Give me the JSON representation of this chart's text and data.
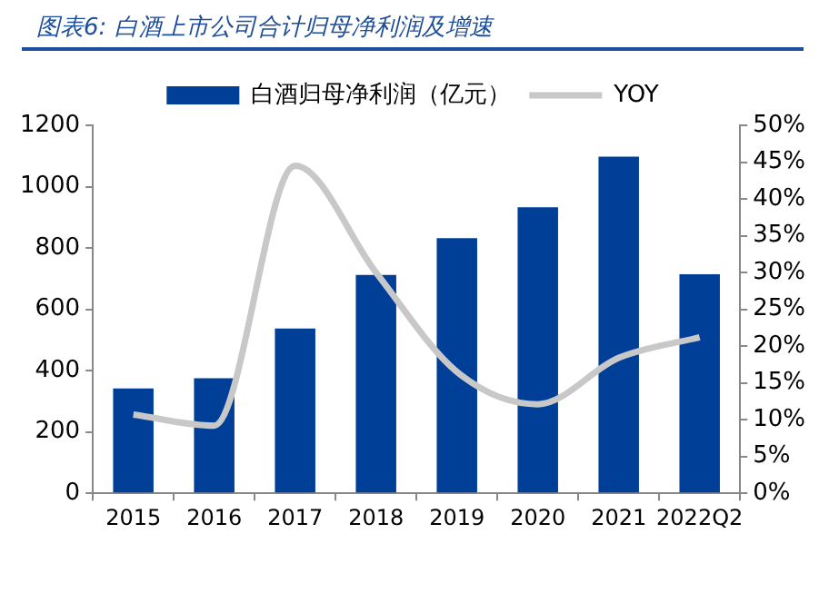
{
  "chart_data": {
    "type": "bar",
    "title": "图表6:  白酒上市公司合计归母净利润及增速",
    "categories": [
      "2015",
      "2016",
      "2017",
      "2018",
      "2019",
      "2020",
      "2021",
      "2022Q2"
    ],
    "series": [
      {
        "name": "白酒归母净利润（亿元）",
        "color": "#003f98",
        "values": [
          342,
          375,
          537,
          712,
          832,
          933,
          1098,
          714
        ]
      },
      {
        "name": "YOY",
        "type": "line",
        "axis": "y2",
        "color": "#c8c8c8",
        "values": [
          10.7,
          9.2,
          44.5,
          30,
          16.5,
          12.1,
          18.4,
          21.2
        ]
      }
    ],
    "ylim": [
      0,
      1200
    ],
    "yticks": [
      0,
      200,
      400,
      600,
      800,
      1000,
      1200
    ],
    "y2lim": [
      0,
      50
    ],
    "y2ticks": [
      {
        "value": 0,
        "label": "0%"
      },
      {
        "value": 5,
        "label": "5%"
      },
      {
        "value": 10,
        "label": "10%"
      },
      {
        "value": 15,
        "label": "15%"
      },
      {
        "value": 20,
        "label": "20%"
      },
      {
        "value": 25,
        "label": "25%"
      },
      {
        "value": 30,
        "label": "30%"
      },
      {
        "value": 35,
        "label": "35%"
      },
      {
        "value": 40,
        "label": "40%"
      },
      {
        "value": 45,
        "label": "45%"
      },
      {
        "value": 50,
        "label": "50%"
      }
    ],
    "grid": false,
    "legend": "top",
    "marker": "none",
    "line_style": "solid"
  }
}
